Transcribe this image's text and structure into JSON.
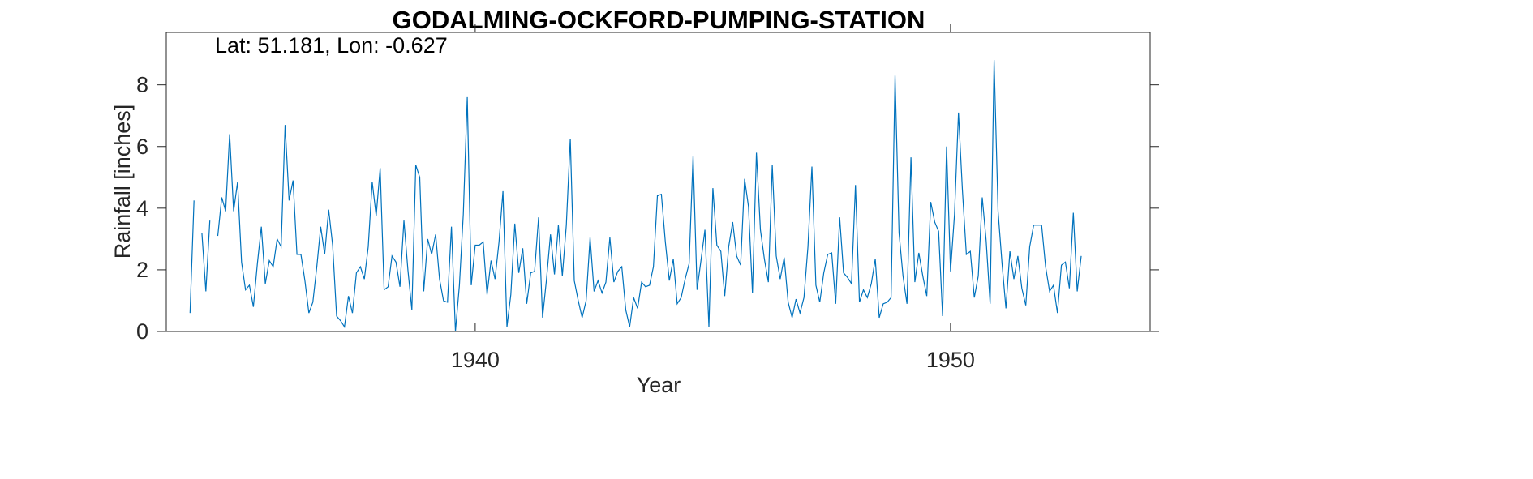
{
  "chart_data": {
    "type": "line",
    "title": "GODALMING-OCKFORD-PUMPING-STATION",
    "annotation": "Lat: 51.181, Lon: -0.627",
    "xlabel": "Year",
    "ylabel": "Rainfall [inches]",
    "xlim": [
      1933.5,
      1954.2
    ],
    "ylim": [
      0,
      9.7
    ],
    "xticks": [
      1940,
      1950
    ],
    "yticks": [
      0,
      2,
      4,
      6,
      8
    ],
    "grid": false,
    "line_color": "#0072BD",
    "series": [
      {
        "start_year": 1934,
        "start_month": 1,
        "values": [
          0.6,
          4.25,
          null,
          3.2,
          1.3,
          3.6,
          null,
          3.1,
          4.35,
          3.9,
          6.4,
          3.9,
          4.85,
          2.25,
          1.35,
          1.5,
          0.8,
          2.2,
          3.4,
          1.55,
          2.3,
          2.1,
          3.0,
          2.75,
          6.7,
          4.25,
          4.9,
          2.5,
          2.5,
          1.65,
          0.6,
          0.95,
          2.1,
          3.4,
          2.5,
          3.95,
          2.8,
          0.5,
          0.35,
          0.15,
          1.15,
          0.6,
          1.9,
          2.1,
          1.7,
          2.75,
          4.85,
          3.75,
          5.3,
          1.35,
          1.45,
          2.45,
          2.25,
          1.45,
          3.6,
          2.0,
          0.7,
          5.4,
          5.0,
          1.3,
          3.0,
          2.5,
          3.15,
          1.7,
          1.0,
          0.95,
          3.4,
          0.0,
          1.5,
          3.8,
          7.6,
          1.5,
          2.8,
          2.8,
          2.9,
          1.2,
          2.3,
          1.7,
          2.9,
          4.55,
          0.15,
          1.2,
          3.5,
          1.9,
          2.7,
          0.9,
          1.9,
          1.95,
          3.7,
          0.45,
          1.7,
          3.15,
          1.85,
          3.45,
          1.8,
          3.45,
          6.25,
          1.65,
          1.0,
          0.45,
          1.0,
          3.05,
          1.3,
          1.65,
          1.25,
          1.6,
          3.05,
          1.6,
          1.95,
          2.1,
          0.7,
          0.15,
          1.1,
          0.75,
          1.6,
          1.45,
          1.5,
          2.1,
          4.4,
          4.45,
          2.9,
          1.65,
          2.35,
          0.9,
          1.1,
          1.7,
          2.2,
          5.7,
          1.35,
          2.3,
          3.3,
          0.15,
          4.65,
          2.8,
          2.6,
          1.15,
          2.75,
          3.55,
          2.45,
          2.15,
          4.95,
          4.05,
          1.25,
          5.8,
          3.3,
          2.35,
          1.6,
          5.4,
          2.45,
          1.7,
          2.4,
          0.95,
          0.45,
          1.05,
          0.6,
          1.1,
          2.75,
          5.35,
          1.5,
          0.95,
          1.9,
          2.5,
          2.55,
          0.9,
          3.7,
          1.9,
          1.75,
          1.55,
          4.75,
          0.95,
          1.35,
          1.1,
          1.55,
          2.35,
          0.45,
          0.9,
          0.95,
          1.1,
          8.3,
          3.2,
          1.8,
          0.9,
          5.65,
          1.6,
          2.55,
          1.8,
          1.15,
          4.2,
          3.55,
          3.25,
          0.5,
          6.0,
          1.95,
          3.8,
          7.1,
          4.6,
          2.5,
          2.6,
          1.1,
          1.8,
          4.35,
          2.95,
          0.9,
          8.8,
          3.9,
          2.2,
          0.75,
          2.6,
          1.7,
          2.45,
          1.4,
          0.85,
          2.75,
          3.45,
          3.45,
          3.45,
          2.1,
          1.3,
          1.5,
          0.6,
          2.15,
          2.25,
          1.4,
          3.85,
          1.3,
          2.45
        ]
      }
    ]
  }
}
